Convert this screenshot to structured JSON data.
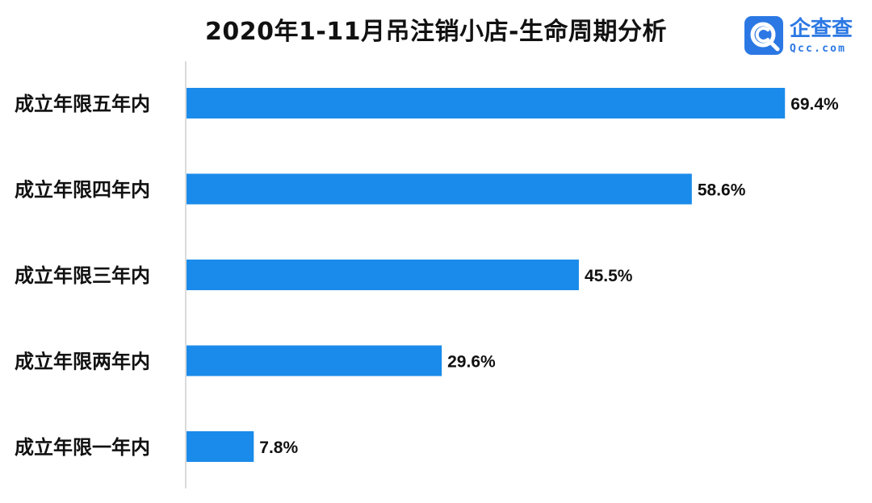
{
  "title": "2020年1-11月吊注销小店-生命周期分析",
  "logo": {
    "name": "企查查",
    "domain": "Qcc.com",
    "icon": "qcc-magnifier-icon",
    "color": "#2b78e4"
  },
  "colors": {
    "bar": "#1a8bea",
    "axis": "#cfcfcf",
    "text": "#111111"
  },
  "chart_data": {
    "type": "bar",
    "orientation": "horizontal",
    "title": "2020年1-11月吊注销小店-生命周期分析",
    "categories": [
      "成立年限五年内",
      "成立年限四年内",
      "成立年限三年内",
      "成立年限两年内",
      "成立年限一年内"
    ],
    "values": [
      69.4,
      58.6,
      45.5,
      29.6,
      7.8
    ],
    "value_labels": [
      "69.4%",
      "58.6%",
      "45.5%",
      "29.6%",
      "7.8%"
    ],
    "unit": "%",
    "xlim": [
      0,
      100
    ],
    "grid": false,
    "legend": "none"
  }
}
